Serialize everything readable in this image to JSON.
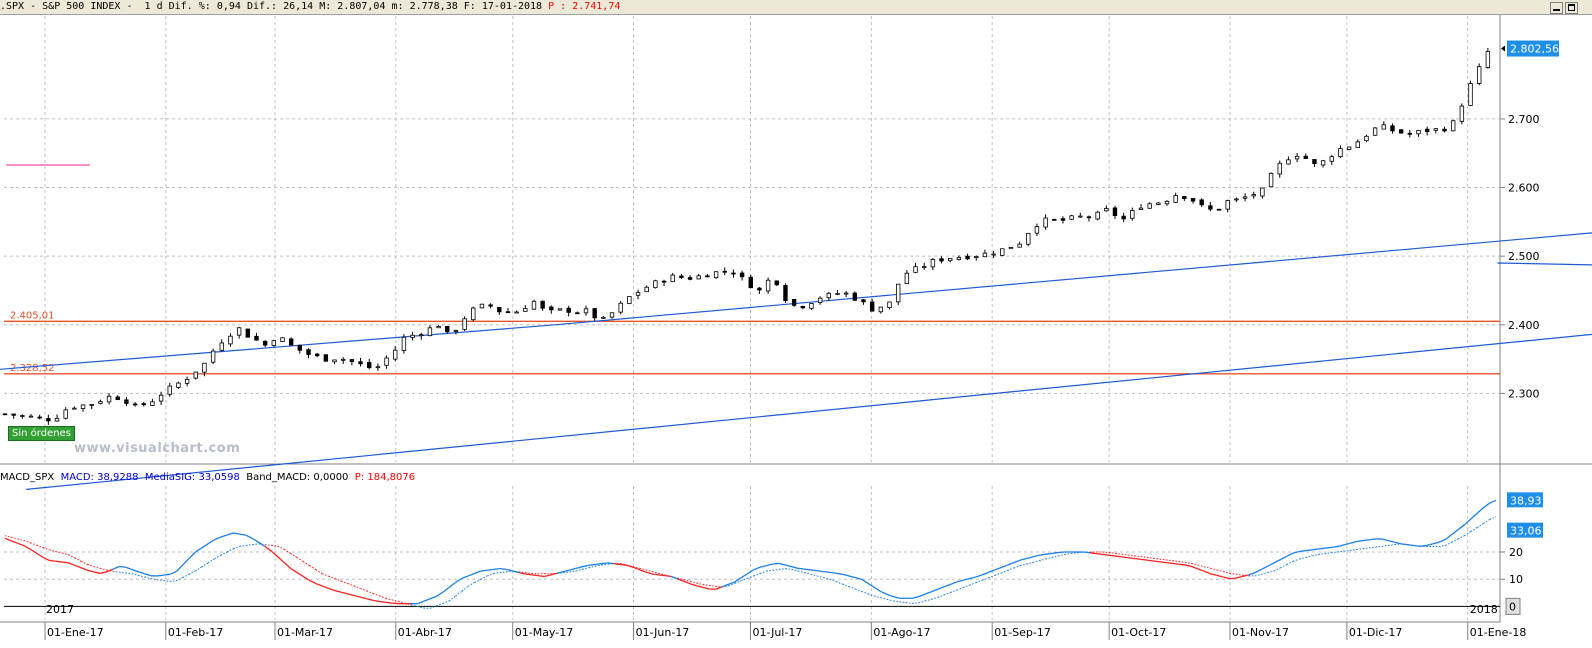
{
  "header": {
    "symbol": ".SPX",
    "name": "S&P 500 INDEX",
    "period": "1 d",
    "difpct_label": "Dif. %:",
    "difpct": "0,94",
    "dif_label": "Dif.:",
    "dif": "26,14",
    "max_label": "M:",
    "max": "2.807,04",
    "min_label": "m:",
    "min": "2.778,38",
    "date_label": "F:",
    "date": "17-01-2018",
    "p_label": "P :",
    "p_value": "2.741,74"
  },
  "macd_header": {
    "name": "MACD_SPX",
    "macd_label": "MACD:",
    "macd": "38,9288",
    "sig_label": "MediaSIG:",
    "sig": "33,0598",
    "band_label": "Band_MACD:",
    "band": "0,0000",
    "p_label": "P:",
    "p_value": "184,8076"
  },
  "badge": {
    "text": "Sin órdenes"
  },
  "watermark": "www.visualchart.com",
  "colors": {
    "up_candle": "#ffffff",
    "down_candle": "#000000",
    "channel_line": "#1e5ad6",
    "level_line": "#e8542a",
    "macd_line": "#1a7fe8",
    "signal_line": "#ff2020",
    "price_tag": "#1e8fe8"
  },
  "chart_data": [
    {
      "type": "candlestick",
      "title": "",
      "ylim": [
        2200,
        2850
      ],
      "yticks": [
        "2.300",
        "2.400",
        "2.500",
        "2.600",
        "2.700"
      ],
      "last_price_label": "2.802,56",
      "last_price": 2802.56,
      "x_labels": [
        "01-Ene-17",
        "01-Feb-17",
        "01-Mar-17",
        "01-Abr-17",
        "01-May-17",
        "01-Jun-17",
        "01-Jul-17",
        "01-Ago-17",
        "01-Sep-17",
        "01-Oct-17",
        "01-Nov-17",
        "01-Dic-17",
        "01-Ene-18"
      ],
      "year_labels": [
        "2017",
        "2018"
      ],
      "levels": [
        {
          "label": "2.405,01",
          "value": 2405.01
        },
        {
          "label": "2.328,52",
          "value": 2328.52
        }
      ],
      "channel_upper": [
        [
          -3,
          2335
        ],
        [
          260,
          2400
        ],
        [
          1494,
          2737
        ]
      ],
      "channel_lower": [
        [
          10,
          2160
        ],
        [
          1494,
          2613
        ]
      ],
      "trend_segment": [
        [
          168,
          2490
        ],
        [
          212,
          2479
        ]
      ],
      "close_anchors": [
        [
          0,
          2270
        ],
        [
          14,
          2265
        ],
        [
          20,
          2262
        ],
        [
          25,
          2267
        ],
        [
          30,
          2280
        ],
        [
          40,
          2284
        ],
        [
          50,
          2296
        ],
        [
          56,
          2292
        ],
        [
          62,
          2279
        ],
        [
          70,
          2290
        ],
        [
          75,
          2302
        ],
        [
          85,
          2320
        ],
        [
          95,
          2345
        ],
        [
          100,
          2370
        ],
        [
          110,
          2396
        ],
        [
          115,
          2384
        ],
        [
          125,
          2367
        ],
        [
          128,
          2386
        ],
        [
          135,
          2370
        ],
        [
          140,
          2362
        ],
        [
          145,
          2355
        ],
        [
          152,
          2350
        ],
        [
          158,
          2352
        ],
        [
          165,
          2345
        ],
        [
          170,
          2340
        ],
        [
          175,
          2335
        ],
        [
          185,
          2365
        ],
        [
          188,
          2380
        ],
        [
          195,
          2387
        ],
        [
          200,
          2393
        ],
        [
          205,
          2400
        ],
        [
          210,
          2383
        ],
        [
          212,
          2389
        ],
        [
          215,
          2402
        ],
        [
          220,
          2420
        ],
        [
          228,
          2430
        ],
        [
          235,
          2418
        ],
        [
          245,
          2420
        ],
        [
          248,
          2440
        ],
        [
          255,
          2420
        ],
        [
          260,
          2418
        ],
        [
          265,
          2424
        ],
        [
          268,
          2418
        ],
        [
          275,
          2420
        ],
        [
          282,
          2405
        ],
        [
          287,
          2417
        ],
        [
          295,
          2440
        ],
        [
          305,
          2458
        ],
        [
          315,
          2470
        ],
        [
          325,
          2468
        ],
        [
          333,
          2475
        ],
        [
          340,
          2478
        ],
        [
          345,
          2477
        ],
        [
          350,
          2463
        ],
        [
          357,
          2449
        ],
        [
          363,
          2473
        ],
        [
          370,
          2433
        ],
        [
          375,
          2425
        ],
        [
          380,
          2432
        ],
        [
          385,
          2440
        ],
        [
          390,
          2443
        ],
        [
          396,
          2448
        ],
        [
          403,
          2437
        ],
        [
          410,
          2423
        ],
        [
          418,
          2430
        ],
        [
          422,
          2458
        ],
        [
          425,
          2474
        ],
        [
          433,
          2484
        ],
        [
          440,
          2494
        ],
        [
          447,
          2498
        ],
        [
          455,
          2500
        ],
        [
          465,
          2504
        ],
        [
          472,
          2510
        ],
        [
          480,
          2520
        ],
        [
          485,
          2540
        ],
        [
          490,
          2552
        ],
        [
          500,
          2552
        ],
        [
          507,
          2557
        ],
        [
          515,
          2557
        ],
        [
          520,
          2568
        ],
        [
          525,
          2560
        ],
        [
          530,
          2552
        ],
        [
          535,
          2572
        ],
        [
          540,
          2576
        ],
        [
          548,
          2580
        ],
        [
          553,
          2590
        ],
        [
          560,
          2586
        ],
        [
          565,
          2573
        ],
        [
          572,
          2565
        ],
        [
          578,
          2580
        ],
        [
          583,
          2582
        ],
        [
          590,
          2590
        ],
        [
          595,
          2596
        ],
        [
          600,
          2625
        ],
        [
          605,
          2640
        ],
        [
          610,
          2650
        ],
        [
          613,
          2645
        ],
        [
          617,
          2640
        ],
        [
          620,
          2630
        ],
        [
          625,
          2642
        ],
        [
          630,
          2655
        ],
        [
          635,
          2660
        ],
        [
          640,
          2668
        ],
        [
          645,
          2680
        ],
        [
          650,
          2690
        ],
        [
          655,
          2684
        ],
        [
          660,
          2680
        ],
        [
          665,
          2677
        ],
        [
          670,
          2683
        ],
        [
          675,
          2684
        ],
        [
          680,
          2685
        ],
        [
          685,
          2695
        ],
        [
          690,
          2730
        ],
        [
          692,
          2745
        ],
        [
          695,
          2760
        ],
        [
          698,
          2780
        ],
        [
          700,
          2795
        ],
        [
          702,
          2800
        ],
        [
          704,
          2802.56
        ]
      ],
      "x_range_days": [
        0,
        704
      ]
    },
    {
      "type": "line",
      "title": "MACD_SPX",
      "ylim": [
        -5,
        45
      ],
      "yticks": [
        "10",
        "20"
      ],
      "zero_label": "0",
      "macd_tag": "38,93",
      "sig_tag": "33,06",
      "series": [
        {
          "name": "MACD",
          "anchors": [
            [
              0,
              25
            ],
            [
              10,
              22
            ],
            [
              20,
              17
            ],
            [
              30,
              16
            ],
            [
              40,
              13
            ],
            [
              46,
              12
            ],
            [
              55,
              15
            ],
            [
              62,
              13
            ],
            [
              70,
              11
            ],
            [
              80,
              12
            ],
            [
              90,
              20
            ],
            [
              100,
              25
            ],
            [
              108,
              27
            ],
            [
              115,
              26
            ],
            [
              125,
              21
            ],
            [
              135,
              14
            ],
            [
              145,
              9
            ],
            [
              155,
              6
            ],
            [
              165,
              4
            ],
            [
              175,
              2
            ],
            [
              185,
              1
            ],
            [
              195,
              1
            ],
            [
              205,
              4
            ],
            [
              215,
              10
            ],
            [
              225,
              13
            ],
            [
              235,
              14
            ],
            [
              245,
              12
            ],
            [
              255,
              11
            ],
            [
              265,
              13
            ],
            [
              275,
              15
            ],
            [
              285,
              16
            ],
            [
              295,
              15
            ],
            [
              305,
              12
            ],
            [
              315,
              11
            ],
            [
              325,
              8
            ],
            [
              335,
              6
            ],
            [
              345,
              9
            ],
            [
              355,
              14
            ],
            [
              365,
              16
            ],
            [
              375,
              14
            ],
            [
              385,
              13
            ],
            [
              395,
              12
            ],
            [
              405,
              10
            ],
            [
              415,
              5
            ],
            [
              422,
              3
            ],
            [
              430,
              3
            ],
            [
              440,
              6
            ],
            [
              450,
              9
            ],
            [
              460,
              11
            ],
            [
              470,
              14
            ],
            [
              480,
              17
            ],
            [
              490,
              19
            ],
            [
              500,
              20
            ],
            [
              510,
              20
            ],
            [
              520,
              19
            ],
            [
              530,
              18
            ],
            [
              540,
              17
            ],
            [
              550,
              16
            ],
            [
              560,
              15
            ],
            [
              570,
              12
            ],
            [
              580,
              10
            ],
            [
              590,
              12
            ],
            [
              600,
              16
            ],
            [
              610,
              20
            ],
            [
              620,
              21
            ],
            [
              630,
              22
            ],
            [
              640,
              24
            ],
            [
              650,
              25
            ],
            [
              660,
              23
            ],
            [
              670,
              22
            ],
            [
              680,
              24
            ],
            [
              690,
              30
            ],
            [
              700,
              37
            ],
            [
              704,
              39
            ]
          ]
        },
        {
          "name": "MediaSIG",
          "anchors": [
            [
              0,
              26
            ],
            [
              10,
              24
            ],
            [
              20,
              21
            ],
            [
              30,
              19
            ],
            [
              40,
              15
            ],
            [
              50,
              13
            ],
            [
              60,
              12
            ],
            [
              70,
              10
            ],
            [
              80,
              9
            ],
            [
              90,
              13
            ],
            [
              100,
              18
            ],
            [
              110,
              22
            ],
            [
              120,
              23
            ],
            [
              130,
              22
            ],
            [
              140,
              17
            ],
            [
              150,
              12
            ],
            [
              160,
              9
            ],
            [
              170,
              6
            ],
            [
              180,
              3
            ],
            [
              190,
              1
            ],
            [
              200,
              -1
            ],
            [
              210,
              2
            ],
            [
              220,
              8
            ],
            [
              230,
              12
            ],
            [
              240,
              13
            ],
            [
              250,
              12
            ],
            [
              260,
              12
            ],
            [
              270,
              13
            ],
            [
              280,
              15
            ],
            [
              290,
              16
            ],
            [
              300,
              14
            ],
            [
              310,
              12
            ],
            [
              320,
              10
            ],
            [
              330,
              8
            ],
            [
              340,
              7
            ],
            [
              350,
              10
            ],
            [
              360,
              13
            ],
            [
              370,
              14
            ],
            [
              380,
              12
            ],
            [
              390,
              10
            ],
            [
              400,
              7
            ],
            [
              410,
              4
            ],
            [
              420,
              2
            ],
            [
              430,
              1
            ],
            [
              440,
              3
            ],
            [
              450,
              6
            ],
            [
              460,
              9
            ],
            [
              470,
              12
            ],
            [
              480,
              15
            ],
            [
              490,
              17
            ],
            [
              500,
              19
            ],
            [
              510,
              20
            ],
            [
              520,
              20
            ],
            [
              530,
              19
            ],
            [
              540,
              18
            ],
            [
              550,
              17
            ],
            [
              560,
              16
            ],
            [
              570,
              14
            ],
            [
              580,
              12
            ],
            [
              590,
              11
            ],
            [
              600,
              13
            ],
            [
              610,
              17
            ],
            [
              620,
              19
            ],
            [
              630,
              20
            ],
            [
              640,
              21
            ],
            [
              650,
              22
            ],
            [
              660,
              23
            ],
            [
              670,
              22
            ],
            [
              680,
              22
            ],
            [
              690,
              26
            ],
            [
              700,
              31
            ],
            [
              704,
              33
            ]
          ]
        }
      ]
    }
  ]
}
